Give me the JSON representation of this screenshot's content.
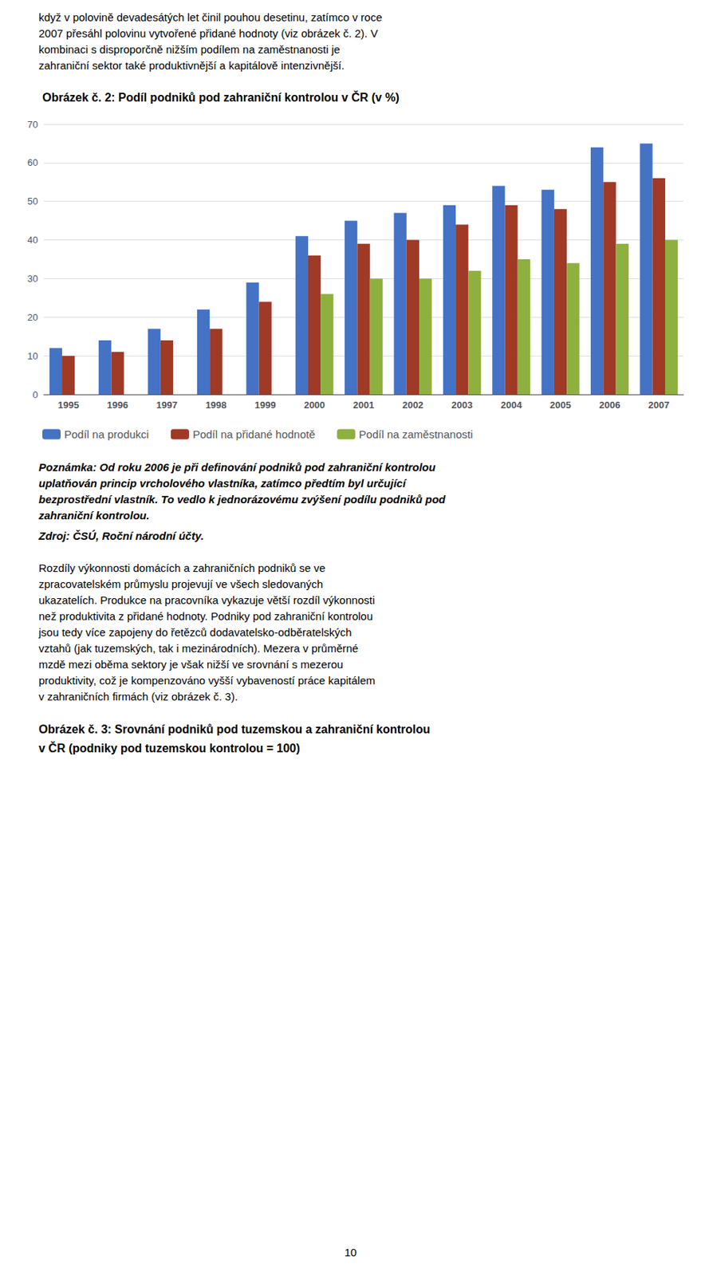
{
  "chart_data": {
    "type": "bar",
    "title": "Obrázek č. 2: Podíl podniků pod zahraniční kontrolou v ČR (v %)",
    "categories": [
      "1995",
      "1996",
      "1997",
      "1998",
      "1999",
      "2000",
      "2001",
      "2002",
      "2003",
      "2004",
      "2005",
      "2006",
      "2007"
    ],
    "series": [
      {
        "name": "Podíl na produkci",
        "color": "#4472C4",
        "values": [
          12,
          14,
          17,
          22,
          29,
          41,
          45,
          47,
          49,
          54,
          53,
          64,
          65
        ]
      },
      {
        "name": "Podíl na přidané hodnotě",
        "color": "#9E3A26",
        "values": [
          10,
          11,
          14,
          17,
          24,
          36,
          39,
          40,
          44,
          49,
          48,
          55,
          56
        ]
      },
      {
        "name": "Podíl na zaměstnanosti",
        "color": "#8DB03E",
        "values": [
          null,
          null,
          null,
          null,
          null,
          26,
          30,
          30,
          32,
          35,
          34,
          39,
          40
        ]
      }
    ],
    "ylim": [
      0,
      70
    ],
    "yticks": [
      0,
      10,
      20,
      30,
      40,
      50,
      60,
      70
    ],
    "grid": true,
    "legend": "bottom"
  },
  "text_above": [
    "když v polovině devadesátých let činil pouhou desetinu, zatímco v roce",
    "2007 přesáhl polovinu vytvořené přidané hodnoty (viz obrázek č. 2). V",
    "kombinaci s disproporčně nižším podílem na zaměstnanosti je",
    "zahraniční sektor také produktivnější a kapitálově intenzivnější."
  ],
  "notes": [
    "Poznámka: Od roku 2006 je při definování podniků pod zahraniční kontrolou",
    "uplatňován princip vrcholového vlastníka, zatímco předtím byl určující",
    "bezprostřední vlastník. To vedlo k jednorázovému zvýšení podílu podniků pod",
    "zahraniční kontrolou."
  ],
  "source": "Zdroj: ČSÚ, Roční národní účty.",
  "body": [
    "Rozdíly výkonnosti domácích a zahraničních podniků se ve",
    "zpracovatelském průmyslu projevují ve všech sledovaných",
    "ukazatelích. Produkce na pracovníka vykazuje větší rozdíl výkonnosti",
    "než produktivita z přidané hodnoty. Podniky pod zahraniční kontrolou",
    "jsou tedy více zapojeny do řetězců dodavatelsko-odběratelských",
    "vztahů (jak tuzemských, tak i mezinárodních). Mezera v průměrné",
    "mzdě mezi oběma sektory je však nižší ve srovnání s mezerou",
    "produktivity, což je kompenzováno vyšší vybaveností práce kapitálem",
    "v zahraničních firmách (viz obrázek č. 3)."
  ],
  "footer": [
    "Obrázek č. 3: Srovnání podniků pod tuzemskou a zahraniční kontrolou",
    "v ČR (podniky pod tuzemskou kontrolou = 100)"
  ],
  "page_number": "10"
}
